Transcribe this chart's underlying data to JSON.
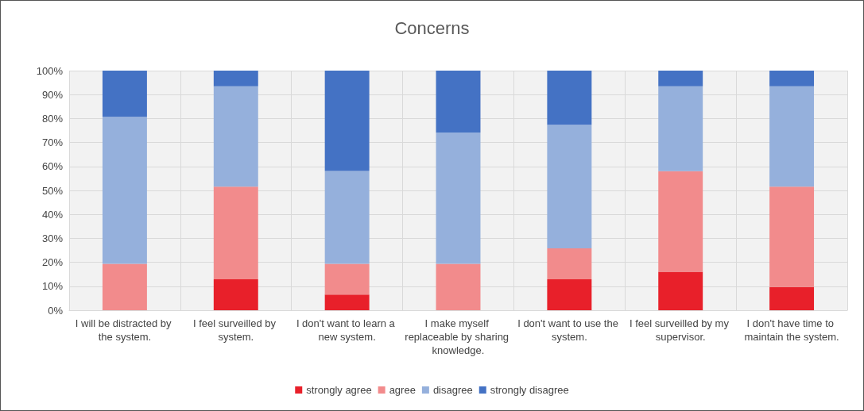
{
  "chart_data": {
    "type": "bar",
    "title": "Concerns",
    "stacked": true,
    "categories": [
      "I will be distracted by the system.",
      "I feel surveilled by system.",
      "I don't want to learn a new system.",
      "I make myself replaceable by sharing knowledge.",
      "I don't want to use the system.",
      "I feel surveilled by my supervisor.",
      "I don't have time to maintain the system."
    ],
    "series": [
      {
        "name": "strongly agree",
        "color": "#e8202a",
        "values": [
          0,
          12.9,
          6.5,
          0,
          12.9,
          16.1,
          9.7
        ]
      },
      {
        "name": "agree",
        "color": "#f28b8c",
        "values": [
          19.4,
          38.7,
          12.9,
          19.4,
          12.9,
          41.9,
          41.9
        ]
      },
      {
        "name": "disagree",
        "color": "#95b0dc",
        "values": [
          61.3,
          41.9,
          38.7,
          54.8,
          51.6,
          35.5,
          41.9
        ]
      },
      {
        "name": "strongly disagree",
        "color": "#4472c4",
        "values": [
          19.4,
          6.5,
          41.9,
          25.8,
          22.6,
          6.5,
          6.5
        ]
      }
    ],
    "ylim": [
      0,
      100
    ],
    "yticks": [
      {
        "value": 0,
        "label": "0%"
      },
      {
        "value": 10,
        "label": "10%"
      },
      {
        "value": 20,
        "label": "20%"
      },
      {
        "value": 30,
        "label": "30%"
      },
      {
        "value": 40,
        "label": "40%"
      },
      {
        "value": 50,
        "label": "50%"
      },
      {
        "value": 60,
        "label": "60%"
      },
      {
        "value": 70,
        "label": "70%"
      },
      {
        "value": 80,
        "label": "80%"
      },
      {
        "value": 90,
        "label": "90%"
      },
      {
        "value": 100,
        "label": "100%"
      }
    ],
    "grid": true,
    "legend": "bottom"
  }
}
